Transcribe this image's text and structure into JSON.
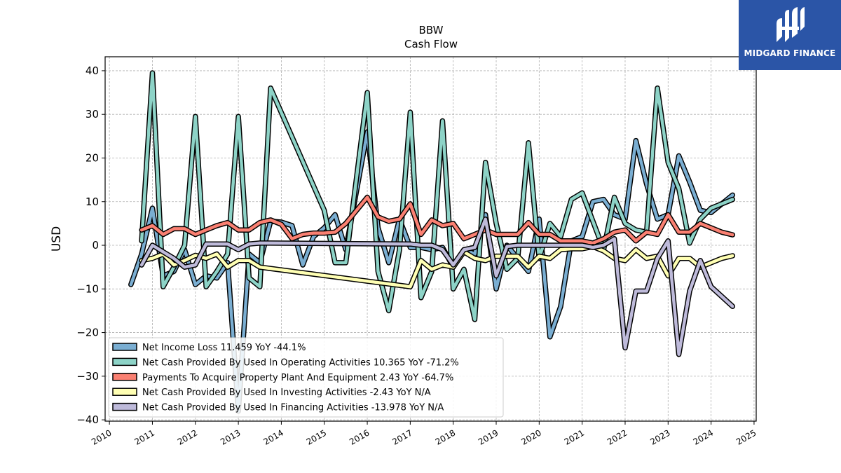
{
  "chart_data": {
    "type": "line",
    "title": "BBW",
    "subtitle": "Cash Flow",
    "xlabel": "",
    "ylabel": "USD",
    "xlim": [
      2009.9,
      2025.05
    ],
    "ylim": [
      -40.3,
      43.2
    ],
    "x_ticks": [
      "2010",
      "2011",
      "2012",
      "2013",
      "2014",
      "2015",
      "2016",
      "2017",
      "2018",
      "2019",
      "2020",
      "2021",
      "2022",
      "2023",
      "2024",
      "2025"
    ],
    "y_ticks": [
      40,
      30,
      20,
      10,
      0,
      -10,
      -20,
      -30,
      -40
    ],
    "y_tick_labels": [
      "40",
      "30",
      "20",
      "10",
      "0",
      "−10",
      "−20",
      "−30",
      "−40"
    ],
    "grid": true,
    "legend_position": "lower-left",
    "series": [
      {
        "name": "Net Income Loss",
        "legend": "Net Income Loss  11.459 YoY -44.1%",
        "color": "#7aaed2",
        "points": [
          [
            2010.5,
            -9
          ],
          [
            2010.75,
            -2
          ],
          [
            2011.0,
            8.5
          ],
          [
            2011.25,
            -7
          ],
          [
            2011.5,
            -6
          ],
          [
            2011.75,
            -1
          ],
          [
            2012.0,
            -9
          ],
          [
            2012.25,
            -7
          ],
          [
            2012.5,
            -7.5
          ],
          [
            2012.75,
            -4
          ],
          [
            2013.0,
            -38
          ],
          [
            2013.25,
            -2
          ],
          [
            2013.5,
            -4
          ],
          [
            2013.75,
            5.5
          ],
          [
            2014.0,
            5.3
          ],
          [
            2014.25,
            4.5
          ],
          [
            2014.5,
            -4.5
          ],
          [
            2014.75,
            2
          ],
          [
            2015.0,
            4
          ],
          [
            2015.25,
            7
          ],
          [
            2015.5,
            -1
          ],
          [
            2016.0,
            26
          ],
          [
            2016.25,
            4
          ],
          [
            2016.5,
            -4
          ],
          [
            2016.75,
            6
          ],
          [
            2017.0,
            -0.5
          ],
          [
            2017.25,
            -0.5
          ],
          [
            2017.5,
            -1
          ],
          [
            2017.75,
            -0.5
          ],
          [
            2018.0,
            -5
          ],
          [
            2018.25,
            -1
          ],
          [
            2018.5,
            -2
          ],
          [
            2018.75,
            7
          ],
          [
            2019.0,
            -10
          ],
          [
            2019.25,
            0
          ],
          [
            2019.5,
            -3
          ],
          [
            2019.75,
            -6
          ],
          [
            2020.0,
            6
          ],
          [
            2020.25,
            -21
          ],
          [
            2020.5,
            -14
          ],
          [
            2020.75,
            1
          ],
          [
            2021.0,
            2
          ],
          [
            2021.25,
            10
          ],
          [
            2021.5,
            10.5
          ],
          [
            2021.75,
            7
          ],
          [
            2022.0,
            6
          ],
          [
            2022.25,
            24
          ],
          [
            2022.5,
            14
          ],
          [
            2022.75,
            6
          ],
          [
            2023.0,
            7
          ],
          [
            2023.25,
            20.5
          ],
          [
            2023.5,
            14.5
          ],
          [
            2023.75,
            8
          ],
          [
            2024.0,
            7.5
          ],
          [
            2024.25,
            9.5
          ],
          [
            2024.5,
            11.5
          ]
        ]
      },
      {
        "name": "Net Cash Provided By Used In Operating Activities",
        "legend": "Net Cash Provided By Used In Operating Activities  10.365 YoY -71.2%",
        "color": "#8dd3c7",
        "points": [
          [
            2010.75,
            1
          ],
          [
            2011.0,
            39.5
          ],
          [
            2011.25,
            -9.5
          ],
          [
            2011.5,
            -5
          ],
          [
            2011.75,
            0
          ],
          [
            2012.0,
            29.5
          ],
          [
            2012.25,
            -9.5
          ],
          [
            2012.5,
            -6
          ],
          [
            2012.75,
            -2
          ],
          [
            2013.0,
            29.5
          ],
          [
            2013.25,
            -7.5
          ],
          [
            2013.5,
            -9.5
          ],
          [
            2013.75,
            36
          ],
          [
            2015.0,
            8
          ],
          [
            2015.25,
            -4
          ],
          [
            2015.5,
            -4
          ],
          [
            2016.0,
            35
          ],
          [
            2016.25,
            -6
          ],
          [
            2016.5,
            -15
          ],
          [
            2016.75,
            -1
          ],
          [
            2017.0,
            30.5
          ],
          [
            2017.25,
            -12
          ],
          [
            2017.5,
            -6
          ],
          [
            2017.75,
            28.5
          ],
          [
            2018.0,
            -10
          ],
          [
            2018.25,
            -5.5
          ],
          [
            2018.5,
            -17
          ],
          [
            2018.75,
            19
          ],
          [
            2019.0,
            5
          ],
          [
            2019.25,
            -5.5
          ],
          [
            2019.5,
            -3
          ],
          [
            2019.75,
            23.5
          ],
          [
            2020.0,
            -3
          ],
          [
            2020.25,
            5
          ],
          [
            2020.5,
            2
          ],
          [
            2020.75,
            10.5
          ],
          [
            2021.0,
            12
          ],
          [
            2021.25,
            5.5
          ],
          [
            2021.5,
            -1
          ],
          [
            2021.75,
            11
          ],
          [
            2022.0,
            5
          ],
          [
            2022.25,
            3.5
          ],
          [
            2022.5,
            3
          ],
          [
            2022.75,
            36
          ],
          [
            2023.0,
            19
          ],
          [
            2023.25,
            13
          ],
          [
            2023.5,
            0.5
          ],
          [
            2023.75,
            6
          ],
          [
            2024.0,
            8.5
          ],
          [
            2024.5,
            10.5
          ]
        ]
      },
      {
        "name": "Payments To Acquire Property Plant And Equipment",
        "legend": "Payments To Acquire Property Plant And Equipment  2.43 YoY -64.7%",
        "color": "#fa8072",
        "points": [
          [
            2010.75,
            3.5
          ],
          [
            2011.0,
            4.5
          ],
          [
            2011.25,
            2.5
          ],
          [
            2011.5,
            3.8
          ],
          [
            2011.75,
            3.8
          ],
          [
            2012.0,
            2.5
          ],
          [
            2012.25,
            3.5
          ],
          [
            2012.5,
            4.5
          ],
          [
            2012.75,
            5.2
          ],
          [
            2013.0,
            3.5
          ],
          [
            2013.25,
            3.5
          ],
          [
            2013.5,
            5.2
          ],
          [
            2013.75,
            5.8
          ],
          [
            2014.0,
            4.8
          ],
          [
            2014.25,
            1.5
          ],
          [
            2014.5,
            2.5
          ],
          [
            2014.75,
            2.8
          ],
          [
            2015.0,
            2.8
          ],
          [
            2015.25,
            3
          ],
          [
            2015.5,
            5
          ],
          [
            2016.0,
            11
          ],
          [
            2016.25,
            6.5
          ],
          [
            2016.5,
            5.5
          ],
          [
            2016.75,
            6
          ],
          [
            2017.0,
            9.5
          ],
          [
            2017.25,
            2.5
          ],
          [
            2017.5,
            5.8
          ],
          [
            2017.75,
            4.5
          ],
          [
            2018.0,
            5
          ],
          [
            2018.25,
            1.5
          ],
          [
            2018.5,
            2.5
          ],
          [
            2018.75,
            3.5
          ],
          [
            2019.0,
            2.5
          ],
          [
            2019.25,
            2.5
          ],
          [
            2019.5,
            2.5
          ],
          [
            2019.75,
            5.2
          ],
          [
            2020.0,
            2.5
          ],
          [
            2020.25,
            2.5
          ],
          [
            2020.5,
            1
          ],
          [
            2020.75,
            1
          ],
          [
            2021.0,
            1
          ],
          [
            2021.25,
            0.5
          ],
          [
            2021.5,
            1.5
          ],
          [
            2021.75,
            3
          ],
          [
            2022.0,
            3.5
          ],
          [
            2022.25,
            1
          ],
          [
            2022.5,
            3
          ],
          [
            2022.75,
            2.5
          ],
          [
            2023.0,
            7
          ],
          [
            2023.25,
            3
          ],
          [
            2023.5,
            3
          ],
          [
            2023.75,
            5
          ],
          [
            2024.0,
            4
          ],
          [
            2024.25,
            3
          ],
          [
            2024.5,
            2.4
          ]
        ]
      },
      {
        "name": "Net Cash Provided By Used In Investing Activities",
        "legend": "Net Cash Provided By Used In Investing Activities  -2.43 YoY N/A",
        "color": "#ffffb3",
        "points": [
          [
            2010.75,
            -3.5
          ],
          [
            2011.0,
            -3
          ],
          [
            2011.25,
            -2
          ],
          [
            2011.5,
            -4.5
          ],
          [
            2011.75,
            -3.5
          ],
          [
            2012.0,
            -2.3
          ],
          [
            2012.25,
            -3
          ],
          [
            2012.5,
            -2
          ],
          [
            2012.75,
            -5
          ],
          [
            2013.0,
            -3.5
          ],
          [
            2013.25,
            -3.5
          ],
          [
            2013.5,
            -5
          ],
          [
            2017.0,
            -9.5
          ],
          [
            2017.25,
            -3.5
          ],
          [
            2017.5,
            -5.5
          ],
          [
            2017.75,
            -4.5
          ],
          [
            2018.0,
            -5
          ],
          [
            2018.25,
            -1.5
          ],
          [
            2018.5,
            -3
          ],
          [
            2018.75,
            -3.5
          ],
          [
            2019.0,
            -2.5
          ],
          [
            2019.25,
            -2.5
          ],
          [
            2019.5,
            -2.5
          ],
          [
            2019.75,
            -5
          ],
          [
            2020.0,
            -2.5
          ],
          [
            2020.25,
            -3
          ],
          [
            2020.5,
            -1
          ],
          [
            2020.75,
            -0.8
          ],
          [
            2021.0,
            -0.8
          ],
          [
            2021.25,
            -0.3
          ],
          [
            2021.5,
            -1.3
          ],
          [
            2021.75,
            -3
          ],
          [
            2022.0,
            -3.5
          ],
          [
            2022.25,
            -1
          ],
          [
            2022.5,
            -3
          ],
          [
            2022.75,
            -2.5
          ],
          [
            2023.0,
            -7
          ],
          [
            2023.25,
            -3
          ],
          [
            2023.5,
            -3
          ],
          [
            2023.75,
            -5
          ],
          [
            2024.0,
            -4
          ],
          [
            2024.25,
            -3
          ],
          [
            2024.5,
            -2.4
          ]
        ]
      },
      {
        "name": "Net Cash Provided By Used In Financing Activities",
        "legend": "Net Cash Provided By Used In Financing Activities  -13.978 YoY N/A",
        "color": "#bebada",
        "points": [
          [
            2010.75,
            -4.5
          ],
          [
            2011.0,
            0
          ],
          [
            2011.25,
            -1.5
          ],
          [
            2011.5,
            -3
          ],
          [
            2011.75,
            -5
          ],
          [
            2012.0,
            -4.5
          ],
          [
            2012.25,
            0.3
          ],
          [
            2012.5,
            0.3
          ],
          [
            2012.75,
            0.3
          ],
          [
            2013.0,
            -1
          ],
          [
            2013.25,
            0.3
          ],
          [
            2013.5,
            0.5
          ],
          [
            2013.75,
            0.5
          ],
          [
            2017.0,
            0.3
          ],
          [
            2017.25,
            0
          ],
          [
            2017.5,
            0
          ],
          [
            2017.75,
            -1
          ],
          [
            2018.0,
            -4.5
          ],
          [
            2018.25,
            -1
          ],
          [
            2018.5,
            -0.5
          ],
          [
            2018.75,
            6
          ],
          [
            2019.0,
            -7
          ],
          [
            2019.25,
            -0.3
          ],
          [
            2019.5,
            0
          ],
          [
            2020.75,
            0
          ],
          [
            2021.0,
            0
          ],
          [
            2021.25,
            -0.5
          ],
          [
            2021.5,
            0
          ],
          [
            2021.75,
            1.5
          ],
          [
            2022.0,
            -23.5
          ],
          [
            2022.25,
            -10.5
          ],
          [
            2022.5,
            -10.5
          ],
          [
            2022.75,
            -3
          ],
          [
            2023.0,
            1
          ],
          [
            2023.25,
            -25
          ],
          [
            2023.5,
            -10.5
          ],
          [
            2023.75,
            -3.5
          ],
          [
            2024.0,
            -9.5
          ],
          [
            2024.5,
            -14
          ]
        ]
      }
    ]
  },
  "logo": {
    "text": "MIDGARD FINANCE"
  }
}
